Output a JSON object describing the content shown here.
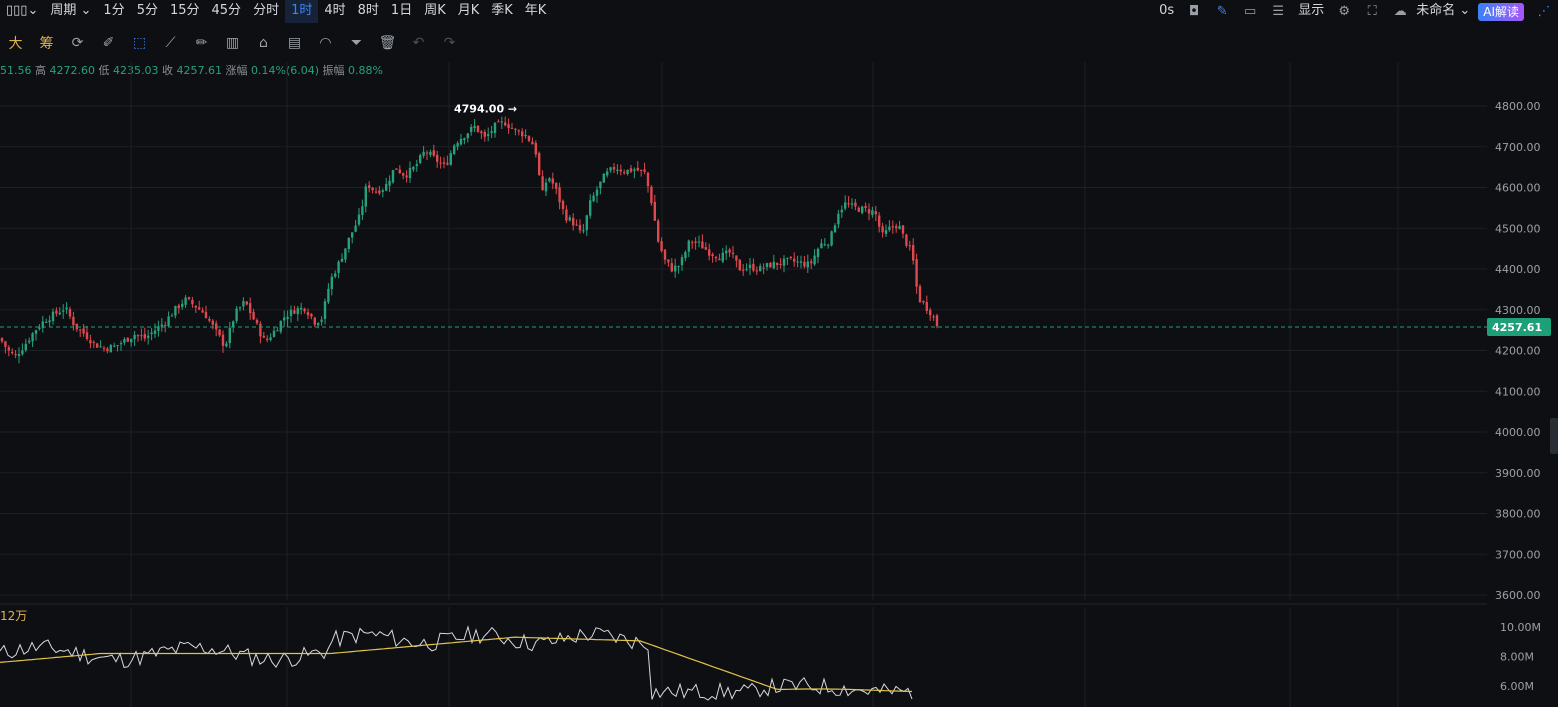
{
  "topbar": {
    "chart_type_icon": "candlestick-chart-icon",
    "period_label": "周期",
    "periods": [
      {
        "label": "1分",
        "active": false
      },
      {
        "label": "5分",
        "active": false
      },
      {
        "label": "15分",
        "active": false
      },
      {
        "label": "45分",
        "active": false
      },
      {
        "label": "分时",
        "active": false
      },
      {
        "label": "1时",
        "active": true
      },
      {
        "label": "4时",
        "active": false
      },
      {
        "label": "8时",
        "active": false
      },
      {
        "label": "1日",
        "active": false
      },
      {
        "label": "周K",
        "active": false
      },
      {
        "label": "月K",
        "active": false
      },
      {
        "label": "季K",
        "active": false
      },
      {
        "label": "年K",
        "active": false
      }
    ],
    "countdown": "0s",
    "display_label": "显示",
    "layout_name": "未命名",
    "ai_button": "AI解读"
  },
  "toolbar": {
    "left_labels": [
      "大",
      "筹"
    ],
    "tools": [
      "sync-icon",
      "pen-icon",
      "cursor-draw-icon",
      "box-select-icon",
      "ruler-icon",
      "brush-icon",
      "bar-compare-icon",
      "lock-icon",
      "note-icon",
      "magnet-icon",
      "filter-icon",
      "trash-icon",
      "undo-icon",
      "redo-icon"
    ]
  },
  "ohlc": {
    "open_partial": "51.56",
    "high_label": "高",
    "high": "4272.60",
    "low_label": "低",
    "low": "4235.03",
    "close_label": "收",
    "close": "4257.61",
    "change_label": "涨幅",
    "change": "0.14%(6.04)",
    "amplitude_label": "振幅",
    "amplitude": "0.88%"
  },
  "volume_label": "12万",
  "colors": {
    "up": "#26a17b",
    "down": "#e0484f",
    "ma": "#e0c34a",
    "volume_line": "#d7d9de",
    "price_tag": "#1d9f78",
    "accent": "#3b82f6"
  },
  "chart_data": [
    {
      "type": "candlestick",
      "y_ticks": [
        "4800.00",
        "4700.00",
        "4600.00",
        "4500.00",
        "4400.00",
        "4300.00",
        "4200.00",
        "4100.00",
        "4000.00",
        "3900.00",
        "3800.00",
        "3700.00",
        "3600.00"
      ],
      "ylim": [
        3575,
        4870
      ],
      "max_marker": {
        "label": "4794.00",
        "value": 4794
      },
      "last_price": {
        "label": "4257.61",
        "value": 4257.61
      },
      "close_path": [
        [
          0,
          4230
        ],
        [
          8,
          4200
        ],
        [
          15,
          4185
        ],
        [
          25,
          4215
        ],
        [
          35,
          4250
        ],
        [
          45,
          4275
        ],
        [
          55,
          4290
        ],
        [
          65,
          4305
        ],
        [
          75,
          4260
        ],
        [
          85,
          4240
        ],
        [
          95,
          4215
        ],
        [
          105,
          4205
        ],
        [
          115,
          4210
        ],
        [
          125,
          4225
        ],
        [
          135,
          4240
        ],
        [
          145,
          4230
        ],
        [
          155,
          4250
        ],
        [
          165,
          4270
        ],
        [
          175,
          4300
        ],
        [
          185,
          4325
        ],
        [
          195,
          4310
        ],
        [
          205,
          4290
        ],
        [
          215,
          4250
        ],
        [
          225,
          4210
        ],
        [
          235,
          4290
        ],
        [
          245,
          4320
        ],
        [
          255,
          4270
        ],
        [
          265,
          4220
        ],
        [
          275,
          4250
        ],
        [
          285,
          4285
        ],
        [
          295,
          4300
        ],
        [
          305,
          4305
        ],
        [
          315,
          4270
        ],
        [
          322,
          4280
        ],
        [
          330,
          4370
        ],
        [
          340,
          4420
        ],
        [
          350,
          4480
        ],
        [
          360,
          4530
        ],
        [
          367,
          4610
        ],
        [
          375,
          4590
        ],
        [
          385,
          4600
        ],
        [
          395,
          4650
        ],
        [
          405,
          4630
        ],
        [
          415,
          4650
        ],
        [
          425,
          4690
        ],
        [
          435,
          4670
        ],
        [
          445,
          4650
        ],
        [
          455,
          4710
        ],
        [
          465,
          4730
        ],
        [
          475,
          4750
        ],
        [
          485,
          4720
        ],
        [
          495,
          4750
        ],
        [
          505,
          4760
        ],
        [
          515,
          4740
        ],
        [
          525,
          4730
        ],
        [
          535,
          4700
        ],
        [
          542,
          4580
        ],
        [
          548,
          4630
        ],
        [
          555,
          4600
        ],
        [
          565,
          4530
        ],
        [
          575,
          4510
        ],
        [
          582,
          4480
        ],
        [
          590,
          4560
        ],
        [
          598,
          4600
        ],
        [
          605,
          4630
        ],
        [
          615,
          4650
        ],
        [
          625,
          4640
        ],
        [
          635,
          4645
        ],
        [
          645,
          4635
        ],
        [
          652,
          4560
        ],
        [
          658,
          4470
        ],
        [
          665,
          4420
        ],
        [
          672,
          4400
        ],
        [
          680,
          4410
        ],
        [
          690,
          4470
        ],
        [
          700,
          4460
        ],
        [
          710,
          4440
        ],
        [
          720,
          4430
        ],
        [
          730,
          4440
        ],
        [
          740,
          4400
        ],
        [
          750,
          4405
        ],
        [
          760,
          4400
        ],
        [
          770,
          4410
        ],
        [
          780,
          4415
        ],
        [
          790,
          4420
        ],
        [
          800,
          4415
        ],
        [
          810,
          4410
        ],
        [
          820,
          4460
        ],
        [
          830,
          4470
        ],
        [
          838,
          4540
        ],
        [
          845,
          4560
        ],
        [
          855,
          4550
        ],
        [
          865,
          4545
        ],
        [
          875,
          4540
        ],
        [
          882,
          4480
        ],
        [
          890,
          4500
        ],
        [
          898,
          4510
        ],
        [
          905,
          4470
        ],
        [
          912,
          4440
        ],
        [
          918,
          4330
        ],
        [
          925,
          4310
        ],
        [
          932,
          4290
        ],
        [
          938,
          4257.61
        ]
      ],
      "volume_ticks": [
        "10.00M",
        "8.00M",
        "6.00M"
      ],
      "volume_ylim": [
        5200000,
        11200000
      ]
    }
  ]
}
